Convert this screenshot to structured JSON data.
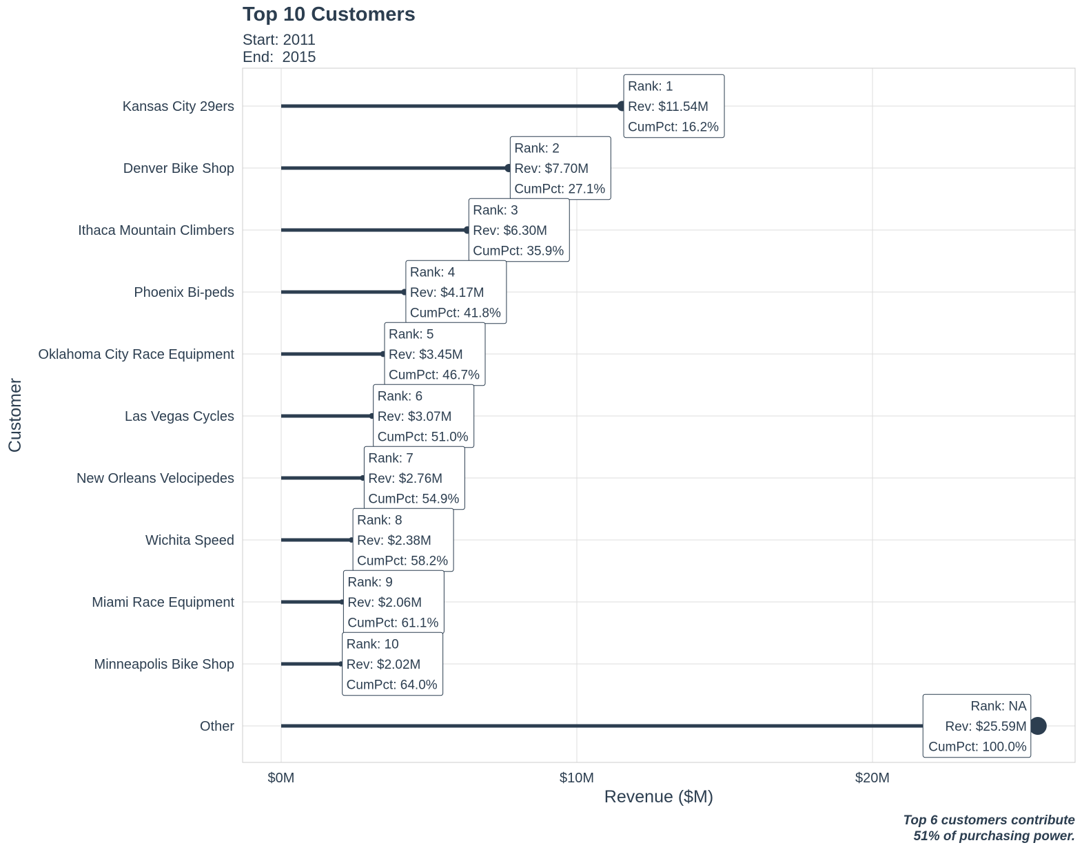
{
  "chart_data": {
    "type": "lollipop",
    "title": "Top 10 Customers",
    "subtitle_lines": [
      "Start: 2011",
      "End:  2015"
    ],
    "xlabel": "Revenue ($M)",
    "ylabel": "Customer",
    "xlim": [
      -1.28,
      26.87
    ],
    "x_ticks": [
      0,
      10,
      20
    ],
    "x_tick_labels": [
      "$0M",
      "$10M",
      "$20M"
    ],
    "grid": true,
    "caption_lines": [
      "Top 6 customers contribute",
      "51% of purchasing power."
    ],
    "colors": {
      "primary": "#2c3e50",
      "grid": "#dedede",
      "background": "#ffffff"
    },
    "categories": [
      "Kansas City 29ers",
      "Denver Bike Shop",
      "Ithaca Mountain Climbers",
      "Phoenix Bi-peds",
      "Oklahoma City Race Equipment",
      "Las Vegas Cycles",
      "New Orleans Velocipedes",
      "Wichita Speed",
      "Miami Race Equipment",
      "Minneapolis Bike Shop",
      "Other"
    ],
    "values": [
      11.54,
      7.7,
      6.3,
      4.17,
      3.45,
      3.07,
      2.76,
      2.38,
      2.06,
      2.02,
      25.59
    ],
    "labels": [
      [
        "Rank: 1",
        "Rev: $11.54M",
        "CumPct: 16.2%"
      ],
      [
        "Rank: 2",
        "Rev: $7.70M",
        "CumPct: 27.1%"
      ],
      [
        "Rank: 3",
        "Rev: $6.30M",
        "CumPct: 35.9%"
      ],
      [
        "Rank: 4",
        "Rev: $4.17M",
        "CumPct: 41.8%"
      ],
      [
        "Rank: 5",
        "Rev: $3.45M",
        "CumPct: 46.7%"
      ],
      [
        "Rank: 6",
        "Rev: $3.07M",
        "CumPct: 51.0%"
      ],
      [
        "Rank: 7",
        "Rev: $2.76M",
        "CumPct: 54.9%"
      ],
      [
        "Rank: 8",
        "Rev: $2.38M",
        "CumPct: 58.2%"
      ],
      [
        "Rank: 9",
        "Rev: $2.06M",
        "CumPct: 61.1%"
      ],
      [
        "Rank: 10",
        "Rev: $2.02M",
        "CumPct: 64.0%"
      ],
      [
        "Rank: NA",
        "Rev: $25.59M",
        "CumPct: 100.0%"
      ]
    ]
  }
}
